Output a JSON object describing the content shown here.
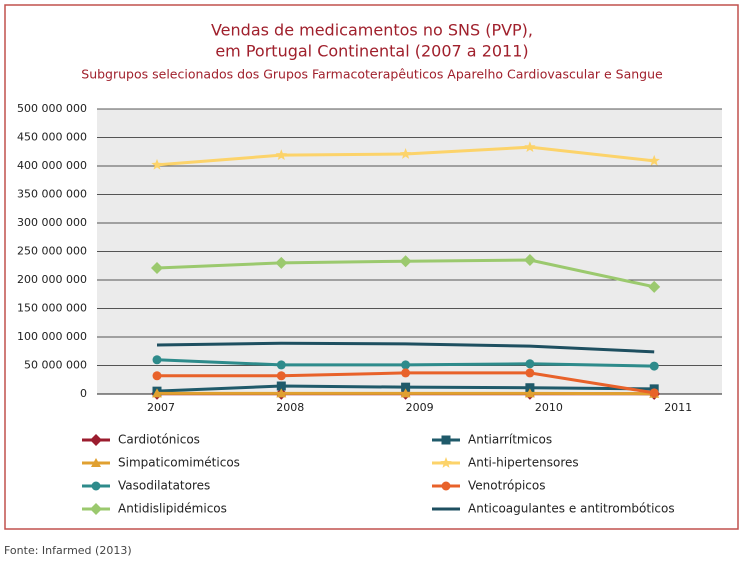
{
  "chart_data": {
    "type": "line",
    "title": [
      "Vendas de medicamentos no SNS (PVP),",
      "em Portugal Continental (2007 a 2011)"
    ],
    "subtitle": "Subgrupos selecionados dos Grupos Farmacoterapêuticos Aparelho Cardiovascular e Sangue",
    "categories": [
      "2007",
      "2008",
      "2009",
      "2010",
      "2011"
    ],
    "ylim": [
      0,
      500000000
    ],
    "yticks": [
      {
        "value": 0,
        "label": "0"
      },
      {
        "value": 50000000,
        "label": "50 000 000"
      },
      {
        "value": 100000000,
        "label": "100 000 000"
      },
      {
        "value": 150000000,
        "label": "150 000 000"
      },
      {
        "value": 200000000,
        "label": "200 000 000"
      },
      {
        "value": 250000000,
        "label": "250 000 000"
      },
      {
        "value": 300000000,
        "label": "300 000 000"
      },
      {
        "value": 350000000,
        "label": "350 000 000"
      },
      {
        "value": 400000000,
        "label": "400 000 000"
      },
      {
        "value": 450000000,
        "label": "450 000 000"
      },
      {
        "value": 500000000,
        "label": "500 000 000"
      }
    ],
    "grid": true,
    "series": [
      {
        "name": "Cardiotónicos",
        "color": "#9b1c2e",
        "marker": "diamond",
        "values": [
          500000,
          500000,
          500000,
          500000,
          300000
        ]
      },
      {
        "name": "Antiarrítmicos",
        "color": "#1f5a6a",
        "marker": "square",
        "values": [
          5000000,
          14000000,
          12000000,
          11000000,
          9000000
        ]
      },
      {
        "name": "Simpaticomiméticos",
        "color": "#e0a030",
        "marker": "triangle",
        "values": [
          1000000,
          1000000,
          1000000,
          1000000,
          500000
        ]
      },
      {
        "name": "Anti-hipertensores",
        "color": "#fcd36a",
        "marker": "star",
        "values": [
          402000000,
          419000000,
          421000000,
          433000000,
          409000000
        ]
      },
      {
        "name": "Vasodilatatores",
        "color": "#2e8b8b",
        "marker": "circle",
        "values": [
          60000000,
          51000000,
          51000000,
          53000000,
          49000000
        ]
      },
      {
        "name": "Venotrópicos",
        "color": "#e8622a",
        "marker": "circle",
        "values": [
          32000000,
          32000000,
          37000000,
          37000000,
          2000000
        ]
      },
      {
        "name": "Antidislipidémicos",
        "color": "#9bc96e",
        "marker": "diamond",
        "values": [
          221000000,
          230000000,
          233000000,
          235000000,
          188000000
        ]
      },
      {
        "name": "Anticoagulantes e antitrombóticos",
        "color": "#1e4f60",
        "marker": "none",
        "values": [
          86000000,
          89000000,
          88000000,
          84000000,
          74000000
        ]
      }
    ],
    "source": "Fonte: Infarmed (2013)"
  }
}
